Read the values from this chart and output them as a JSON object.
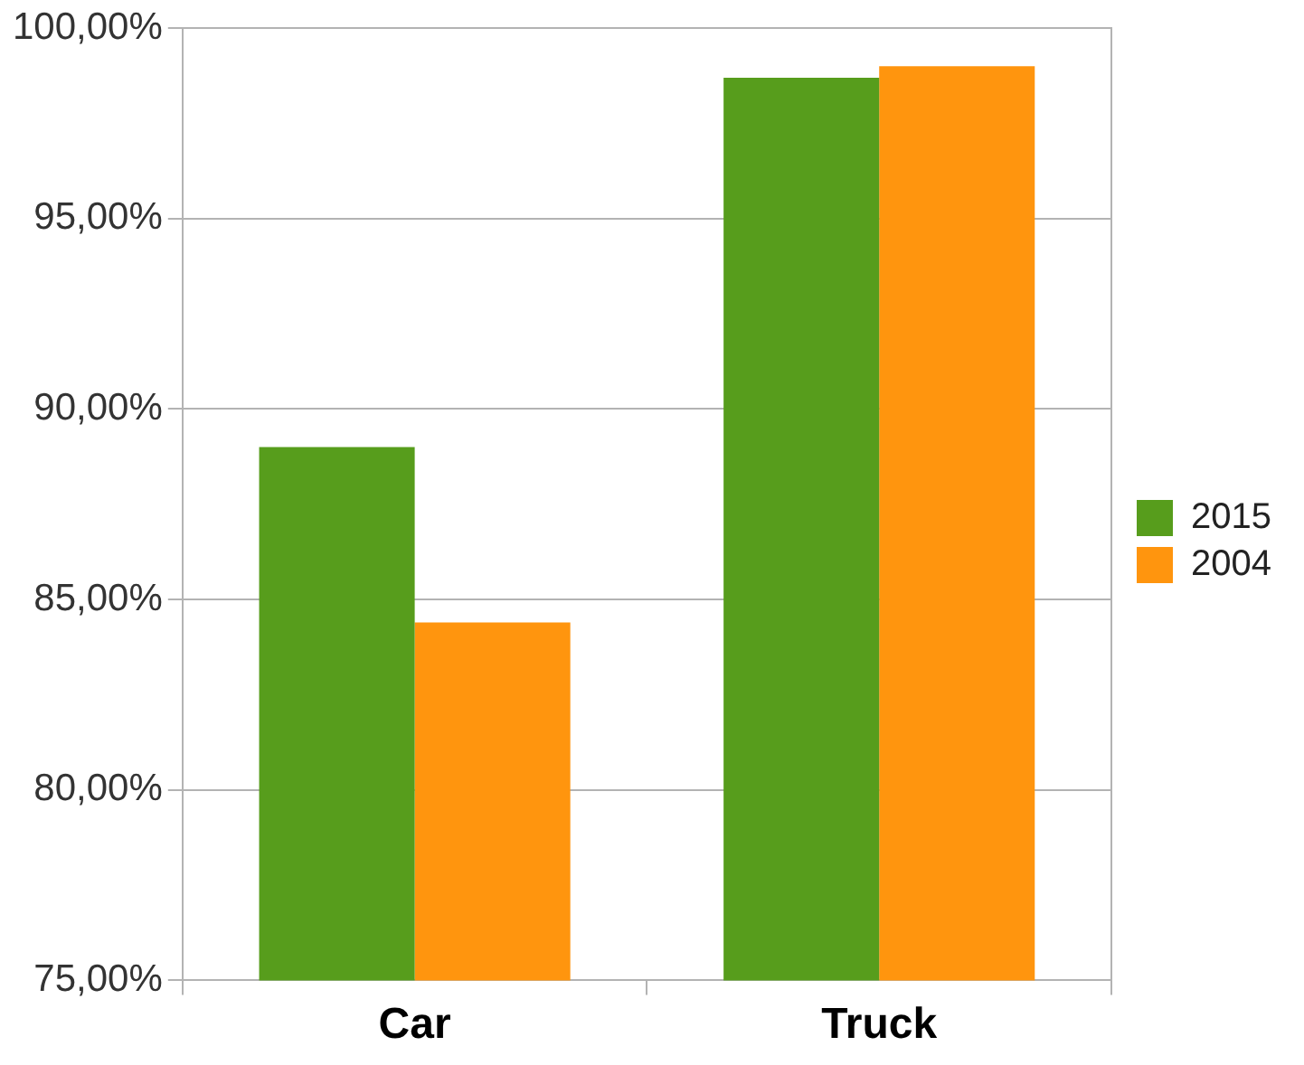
{
  "chart_data": {
    "type": "bar",
    "categories": [
      "Car",
      "Truck"
    ],
    "series": [
      {
        "name": "2015",
        "color": "#579d1c",
        "values": [
          89.0,
          98.7
        ]
      },
      {
        "name": "2004",
        "color": "#ff950e",
        "values": [
          84.4,
          99.0
        ]
      }
    ],
    "ylim": [
      75,
      100
    ],
    "yticks": [
      {
        "value": 75,
        "label": "75,00%"
      },
      {
        "value": 80,
        "label": "80,00%"
      },
      {
        "value": 85,
        "label": "85,00%"
      },
      {
        "value": 90,
        "label": "90,00%"
      },
      {
        "value": 95,
        "label": "95,00%"
      },
      {
        "value": 100,
        "label": "100,00%"
      }
    ],
    "grid": "y",
    "legend": "right"
  }
}
